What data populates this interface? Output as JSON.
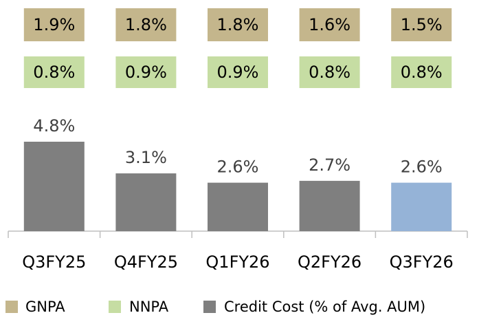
{
  "chart_data": {
    "type": "bar",
    "categories": [
      "Q3FY25",
      "Q4FY25",
      "Q1FY26",
      "Q2FY26",
      "Q3FY26"
    ],
    "series": [
      {
        "name": "GNPA",
        "color": "#c4b68c",
        "values": [
          1.9,
          1.8,
          1.8,
          1.6,
          1.5
        ],
        "value_labels": [
          "1.9%",
          "1.8%",
          "1.8%",
          "1.6%",
          "1.5%"
        ]
      },
      {
        "name": "NNPA",
        "color": "#c6dda3",
        "values": [
          0.8,
          0.9,
          0.9,
          0.8,
          0.8
        ],
        "value_labels": [
          "0.8%",
          "0.9%",
          "0.9%",
          "0.8%",
          "0.8%"
        ]
      },
      {
        "name": "Credit Cost (% of Avg. AUM)",
        "color": "#7f7f7f",
        "colors": [
          "#7f7f7f",
          "#7f7f7f",
          "#7f7f7f",
          "#7f7f7f",
          "#95b3d7"
        ],
        "values": [
          4.8,
          3.1,
          2.6,
          2.7,
          2.6
        ],
        "value_labels": [
          "4.8%",
          "3.1%",
          "2.6%",
          "2.7%",
          "2.6%"
        ]
      }
    ]
  }
}
